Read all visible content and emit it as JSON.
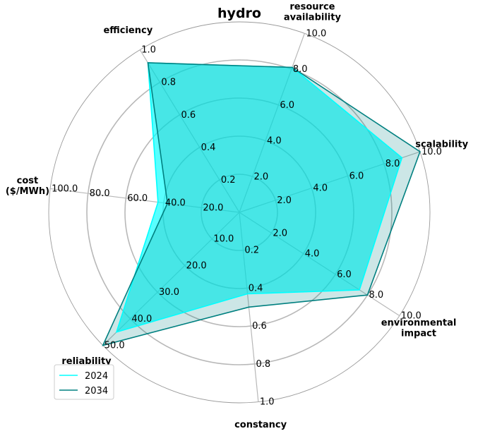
{
  "chart_data": {
    "type": "radar",
    "title": "hydro",
    "axes": [
      {
        "label": "resource\navailability",
        "ticks": [
          "2.0",
          "4.0",
          "6.0",
          "8.0",
          "10.0"
        ],
        "max": 10
      },
      {
        "label": "scalability",
        "ticks": [
          "2.0",
          "4.0",
          "6.0",
          "8.0",
          "10.0"
        ],
        "max": 10
      },
      {
        "label": "environmental\nimpact",
        "ticks": [
          "2.0",
          "4.0",
          "6.0",
          "8.0",
          "10.0"
        ],
        "max": 10
      },
      {
        "label": "constancy",
        "ticks": [
          "0.2",
          "0.4",
          "0.6",
          "0.8",
          "1.0"
        ],
        "max": 1
      },
      {
        "label": "reliability",
        "ticks": [
          "10.0",
          "20.0",
          "30.0",
          "40.0",
          "50.0"
        ],
        "max": 50
      },
      {
        "label": "cost\n($/MWh)",
        "ticks": [
          "20.0",
          "40.0",
          "60.0",
          "80.0",
          "100.0"
        ],
        "max": 100
      },
      {
        "label": "efficiency",
        "ticks": [
          "0.2",
          "0.4",
          "0.6",
          "0.8",
          "1.0"
        ],
        "max": 1
      }
    ],
    "series": [
      {
        "name": "2024",
        "color": "#00ffff",
        "fill_opacity": 0.65,
        "values": [
          8.1,
          9.0,
          7.5,
          0.43,
          45.0,
          43.0,
          0.92
        ]
      },
      {
        "name": "2034",
        "color": "#008080",
        "fill_opacity": 0.2,
        "values": [
          8.1,
          10.0,
          8.0,
          0.5,
          50.0,
          38.0,
          0.92
        ]
      }
    ],
    "legend_position": "lower-left"
  }
}
